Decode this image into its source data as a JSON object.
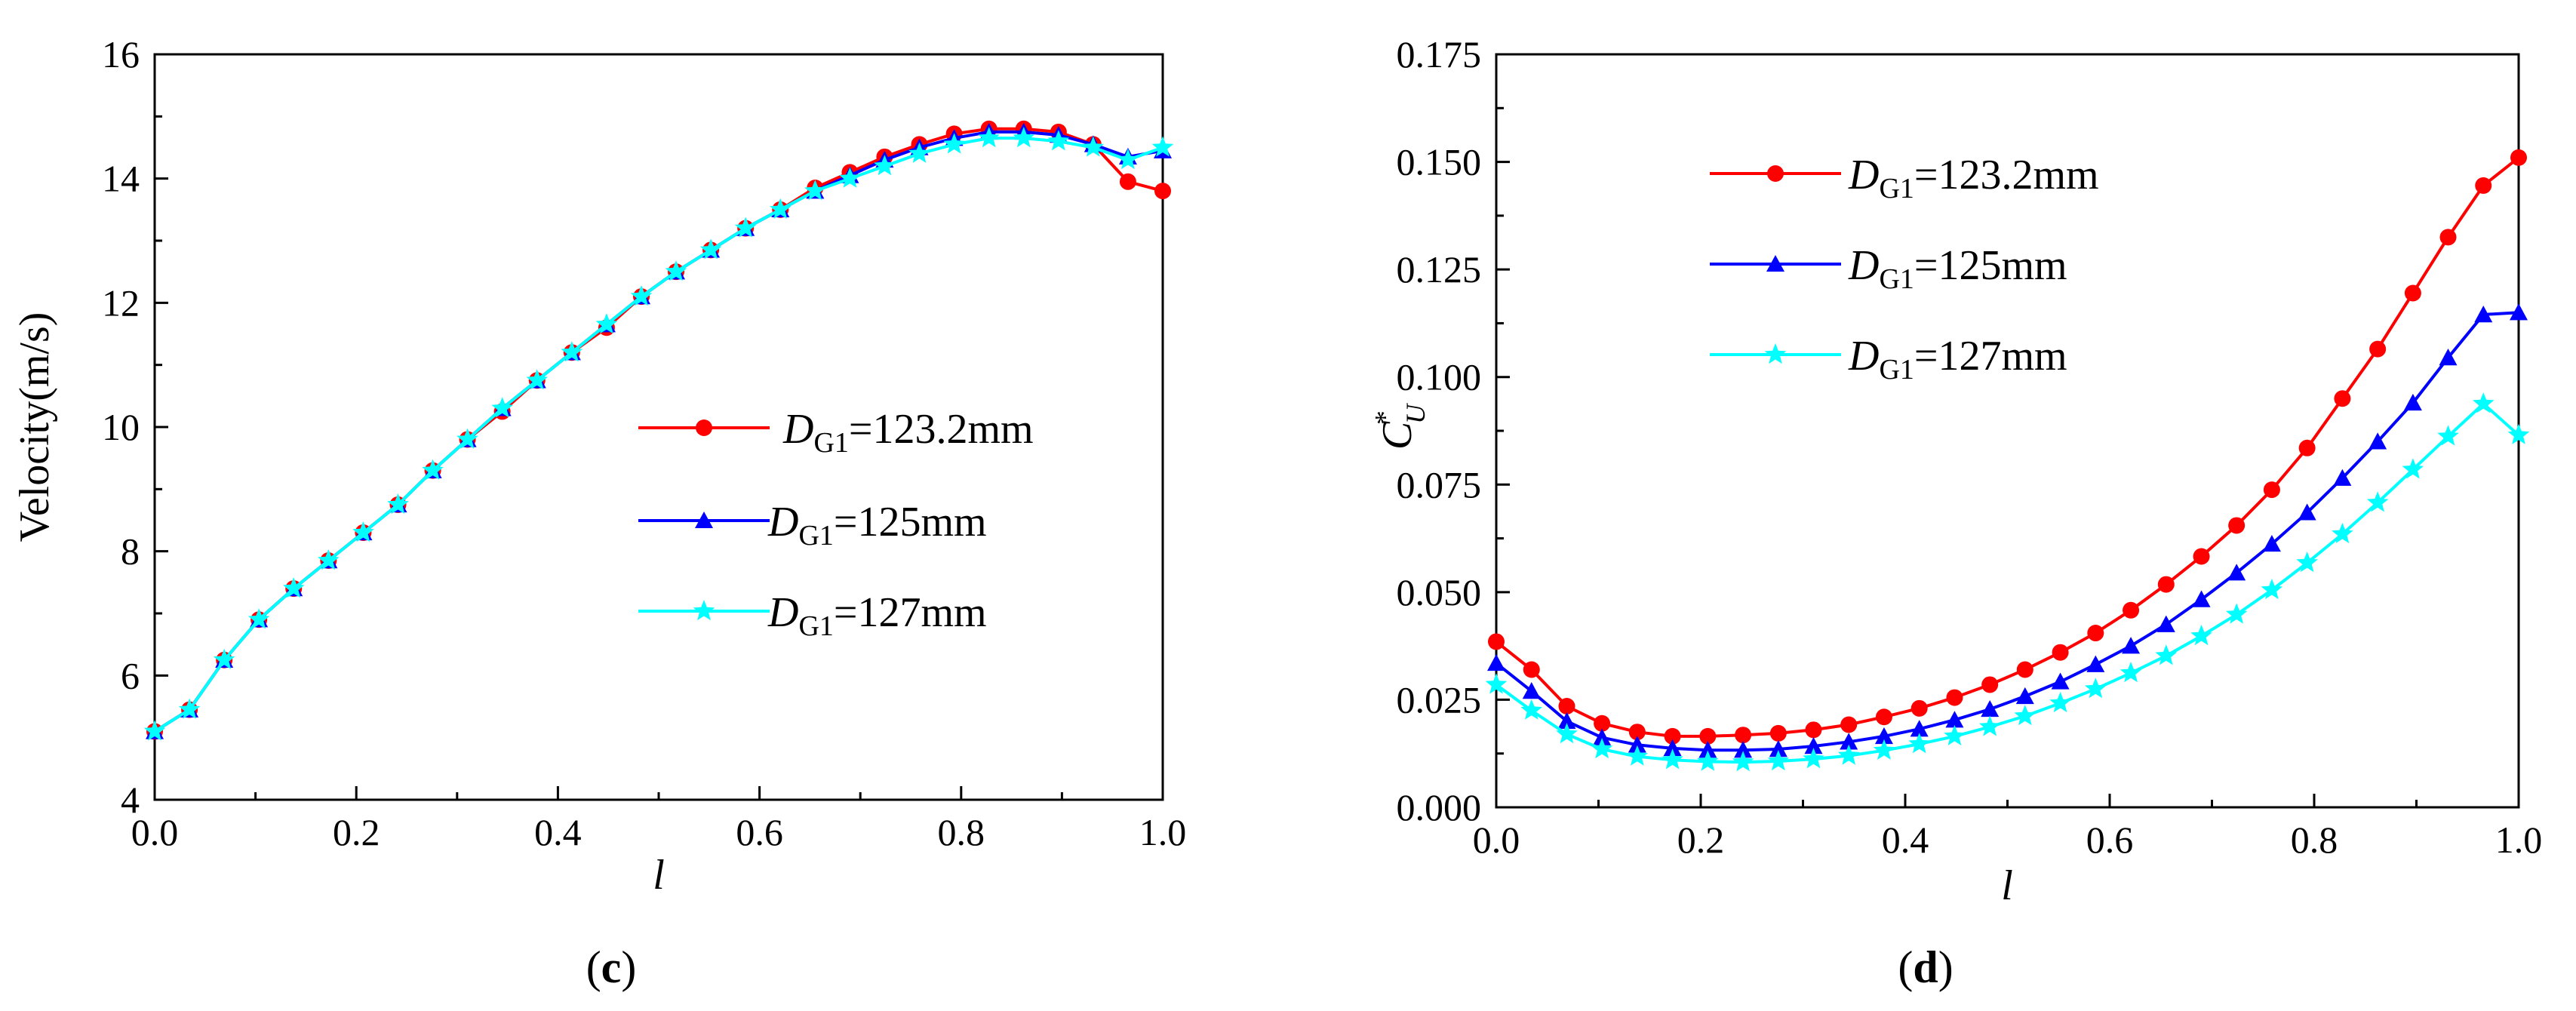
{
  "chart_data": [
    {
      "type": "line",
      "panel_label_open": "(",
      "panel_label": "c",
      "panel_label_close": ")",
      "xlabel": "l",
      "ylabel": "Velocity(m/s)",
      "xlim": [
        0,
        1
      ],
      "ylim": [
        4,
        16
      ],
      "xticks": [
        "0.0",
        "0.2",
        "0.4",
        "0.6",
        "0.8",
        "1.0"
      ],
      "xtick_values": [
        0,
        0.2,
        0.4,
        0.6,
        0.8,
        1.0
      ],
      "yticks": [
        "4",
        "6",
        "8",
        "10",
        "12",
        "14",
        "16"
      ],
      "ytick_values": [
        4,
        6,
        8,
        10,
        12,
        14,
        16
      ],
      "legend_position": "center-right",
      "x": [
        0,
        0.0345,
        0.069,
        0.1034,
        0.1379,
        0.1724,
        0.2069,
        0.2414,
        0.2759,
        0.3103,
        0.3448,
        0.3793,
        0.4138,
        0.4483,
        0.4828,
        0.5172,
        0.5517,
        0.5862,
        0.6207,
        0.6552,
        0.6897,
        0.7241,
        0.7586,
        0.7931,
        0.8276,
        0.8621,
        0.8966,
        0.931,
        0.9655,
        1.0
      ],
      "series": [
        {
          "name_prefix": "D",
          "name_sub": "G1",
          "name_suffix": "=123.2mm",
          "color": "#ff0000",
          "marker": "circle",
          "values": [
            5.1,
            5.45,
            6.25,
            6.9,
            7.4,
            7.85,
            8.3,
            8.75,
            9.3,
            9.8,
            10.25,
            10.75,
            11.2,
            11.6,
            12.1,
            12.5,
            12.85,
            13.2,
            13.5,
            13.85,
            14.1,
            14.35,
            14.55,
            14.72,
            14.8,
            14.8,
            14.75,
            14.55,
            13.95,
            13.8
          ]
        },
        {
          "name_prefix": "D",
          "name_sub": "G1",
          "name_suffix": "=125mm",
          "color": "#0000ff",
          "marker": "triangle",
          "values": [
            5.1,
            5.45,
            6.25,
            6.9,
            7.4,
            7.85,
            8.3,
            8.75,
            9.3,
            9.8,
            10.3,
            10.75,
            11.2,
            11.65,
            12.1,
            12.5,
            12.85,
            13.2,
            13.5,
            13.8,
            14.05,
            14.3,
            14.5,
            14.65,
            14.75,
            14.75,
            14.7,
            14.55,
            14.35,
            14.45
          ]
        },
        {
          "name_prefix": "D",
          "name_sub": "G1",
          "name_suffix": "=127mm",
          "color": "#00ffff",
          "marker": "star",
          "values": [
            5.1,
            5.45,
            6.25,
            6.9,
            7.4,
            7.85,
            8.3,
            8.75,
            9.3,
            9.8,
            10.3,
            10.75,
            11.2,
            11.65,
            12.1,
            12.5,
            12.85,
            13.2,
            13.5,
            13.8,
            14.0,
            14.2,
            14.4,
            14.55,
            14.65,
            14.65,
            14.6,
            14.5,
            14.3,
            14.5
          ]
        }
      ]
    },
    {
      "type": "line",
      "panel_label_open": "(",
      "panel_label": "d",
      "panel_label_close": ")",
      "xlabel": "l",
      "ylabel_main": "C",
      "ylabel_sup": "*",
      "ylabel_sub": "U",
      "xlim": [
        0,
        1
      ],
      "ylim": [
        0,
        0.175
      ],
      "xticks": [
        "0.0",
        "0.2",
        "0.4",
        "0.6",
        "0.8",
        "1.0"
      ],
      "xtick_values": [
        0,
        0.2,
        0.4,
        0.6,
        0.8,
        1.0
      ],
      "yticks": [
        "0.000",
        "0.025",
        "0.050",
        "0.075",
        "0.100",
        "0.125",
        "0.150",
        "0.175"
      ],
      "ytick_values": [
        0,
        0.025,
        0.05,
        0.075,
        0.1,
        0.125,
        0.15,
        0.175
      ],
      "legend_position": "top-left",
      "x": [
        0,
        0.0345,
        0.069,
        0.1034,
        0.1379,
        0.1724,
        0.2069,
        0.2414,
        0.2759,
        0.3103,
        0.3448,
        0.3793,
        0.4138,
        0.4483,
        0.4828,
        0.5172,
        0.5517,
        0.5862,
        0.6207,
        0.6552,
        0.6897,
        0.7241,
        0.7586,
        0.7931,
        0.8276,
        0.8621,
        0.8966,
        0.931,
        0.9655,
        1.0
      ],
      "series": [
        {
          "name_prefix": "D",
          "name_sub": "G1",
          "name_suffix": "=123.2mm",
          "color": "#ff0000",
          "marker": "circle",
          "values": [
            0.0385,
            0.032,
            0.0235,
            0.0195,
            0.0175,
            0.0165,
            0.0165,
            0.0168,
            0.0172,
            0.018,
            0.0192,
            0.021,
            0.023,
            0.0255,
            0.0285,
            0.032,
            0.036,
            0.0405,
            0.0458,
            0.0518,
            0.0583,
            0.0655,
            0.0738,
            0.0835,
            0.095,
            0.1065,
            0.1195,
            0.1325,
            0.1445,
            0.151
          ]
        },
        {
          "name_prefix": "D",
          "name_sub": "G1",
          "name_suffix": "=125mm",
          "color": "#0000ff",
          "marker": "triangle",
          "values": [
            0.0335,
            0.027,
            0.02,
            0.0162,
            0.0145,
            0.0137,
            0.0133,
            0.0133,
            0.0135,
            0.0142,
            0.0152,
            0.0165,
            0.0182,
            0.0203,
            0.0228,
            0.0258,
            0.0292,
            0.0332,
            0.0375,
            0.0425,
            0.0483,
            0.0545,
            0.0612,
            0.0685,
            0.0765,
            0.085,
            0.094,
            0.1045,
            0.1145,
            0.115
          ]
        },
        {
          "name_prefix": "D",
          "name_sub": "G1",
          "name_suffix": "=127mm",
          "color": "#00ffff",
          "marker": "star",
          "values": [
            0.0285,
            0.0225,
            0.017,
            0.0135,
            0.0118,
            0.011,
            0.0106,
            0.0105,
            0.0107,
            0.0112,
            0.012,
            0.0132,
            0.0147,
            0.0165,
            0.0187,
            0.0212,
            0.0242,
            0.0275,
            0.0312,
            0.0352,
            0.0398,
            0.0448,
            0.0505,
            0.0568,
            0.0635,
            0.0708,
            0.0785,
            0.0862,
            0.0938,
            0.0865
          ]
        }
      ]
    }
  ]
}
